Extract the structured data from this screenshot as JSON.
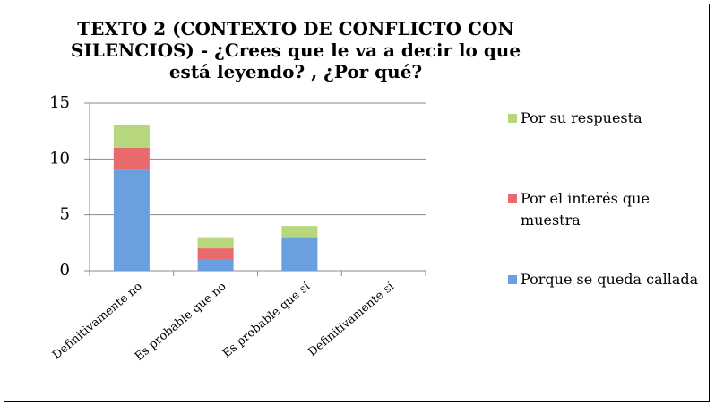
{
  "chart_data": {
    "type": "stacked_bar",
    "title": "TEXTO 2 (CONTEXTO DE CONFLICTO CON SILENCIOS) - ¿Crees que le va a decir lo que está leyendo? , ¿Por qué?",
    "categories": [
      "Definitivamente no",
      "Es probable que no",
      "Es probable que sí",
      "Definitivamente sí"
    ],
    "series": [
      {
        "name": "Porque se queda callada",
        "color": "#6aa0e0",
        "values": [
          9,
          1,
          3,
          0
        ]
      },
      {
        "name": "Por el interés que muestra",
        "color": "#e86a6c",
        "values": [
          2,
          1,
          0,
          0
        ]
      },
      {
        "name": "Por su respuesta",
        "color": "#b6d77c",
        "values": [
          2,
          1,
          1,
          0
        ]
      }
    ],
    "ylim": [
      0,
      15
    ],
    "yticks": [
      0,
      5,
      10,
      15
    ],
    "grid": true,
    "legend": "right"
  }
}
